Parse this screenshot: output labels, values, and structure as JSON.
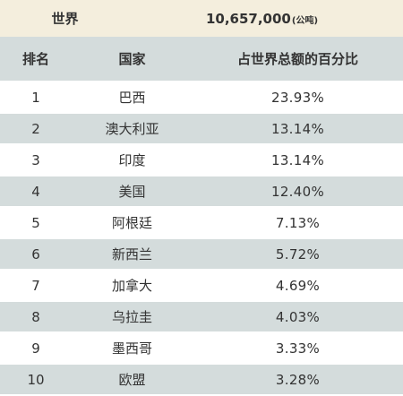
{
  "summary": {
    "label": "世界",
    "value": "10,657,000",
    "unit": "(公吨)"
  },
  "header": {
    "rank": "排名",
    "country": "国家",
    "share": "占世界总额的百分比"
  },
  "rows": [
    {
      "rank": "1",
      "country": "巴西",
      "share": "23.93%"
    },
    {
      "rank": "2",
      "country": "澳大利亚",
      "share": "13.14%"
    },
    {
      "rank": "3",
      "country": "印度",
      "share": "13.14%"
    },
    {
      "rank": "4",
      "country": "美国",
      "share": "12.40%"
    },
    {
      "rank": "5",
      "country": "阿根廷",
      "share": "7.13%"
    },
    {
      "rank": "6",
      "country": "新西兰",
      "share": "5.72%"
    },
    {
      "rank": "7",
      "country": "加拿大",
      "share": "4.69%"
    },
    {
      "rank": "8",
      "country": "乌拉圭",
      "share": "4.03%"
    },
    {
      "rank": "9",
      "country": "墨西哥",
      "share": "3.33%"
    },
    {
      "rank": "10",
      "country": "欧盟",
      "share": "3.28%"
    }
  ],
  "colors": {
    "summary_bg": "#f4eedd",
    "stripe_bg": "#d4dcdc",
    "row_bg": "#ffffff",
    "text": "#333333"
  }
}
